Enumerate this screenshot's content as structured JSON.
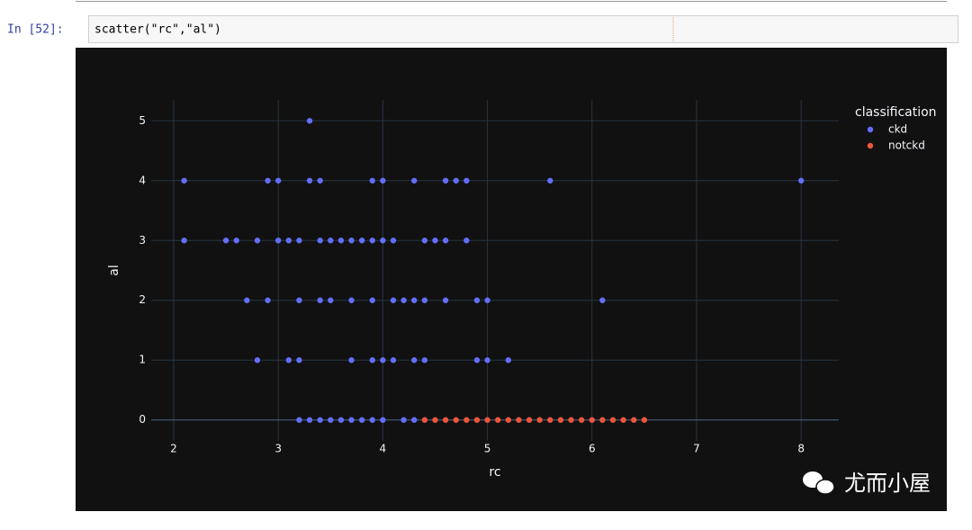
{
  "notebook": {
    "prompt": "In [52]:",
    "code": "scatter(\"rc\",\"al\")"
  },
  "chart_data": {
    "type": "scatter",
    "x_label": "rc",
    "y_label": "al",
    "legend_title": "classification",
    "legend_position": "right",
    "xlim": [
      1.785,
      8.36
    ],
    "ylim": [
      -0.35,
      5.35
    ],
    "xticks": [
      2,
      3,
      4,
      5,
      6,
      7,
      8
    ],
    "yticks": [
      0,
      1,
      2,
      3,
      4,
      5
    ],
    "grid": true,
    "series": [
      {
        "name": "ckd",
        "color": "#636efa",
        "x": [
          3.3,
          2.1,
          2.9,
          3.0,
          3.3,
          3.4,
          3.9,
          4.0,
          4.3,
          4.6,
          4.7,
          4.8,
          5.6,
          8.0,
          2.1,
          2.5,
          2.6,
          2.8,
          3.0,
          3.1,
          3.2,
          3.4,
          3.5,
          3.6,
          3.7,
          3.8,
          3.9,
          4.0,
          4.1,
          4.4,
          4.5,
          4.6,
          4.8,
          2.7,
          2.9,
          3.2,
          3.4,
          3.5,
          3.7,
          3.9,
          4.1,
          4.2,
          4.3,
          4.4,
          4.6,
          4.9,
          5.0,
          6.1,
          2.8,
          3.1,
          3.2,
          3.7,
          3.9,
          4.0,
          4.1,
          4.3,
          4.4,
          4.9,
          5.0,
          5.2,
          3.2,
          3.3,
          3.4,
          3.5,
          3.6,
          3.7,
          3.8,
          3.9,
          4.0,
          4.2,
          4.3
        ],
        "y": [
          5,
          4,
          4,
          4,
          4,
          4,
          4,
          4,
          4,
          4,
          4,
          4,
          4,
          4,
          3,
          3,
          3,
          3,
          3,
          3,
          3,
          3,
          3,
          3,
          3,
          3,
          3,
          3,
          3,
          3,
          3,
          3,
          3,
          2,
          2,
          2,
          2,
          2,
          2,
          2,
          2,
          2,
          2,
          2,
          2,
          2,
          2,
          2,
          1,
          1,
          1,
          1,
          1,
          1,
          1,
          1,
          1,
          1,
          1,
          1,
          0,
          0,
          0,
          0,
          0,
          0,
          0,
          0,
          0,
          0,
          0
        ]
      },
      {
        "name": "notckd",
        "color": "#ef553b",
        "x": [
          4.4,
          4.5,
          4.6,
          4.7,
          4.8,
          4.9,
          5.0,
          5.1,
          5.2,
          5.3,
          5.4,
          5.5,
          5.6,
          5.7,
          5.8,
          5.9,
          6.0,
          6.1,
          6.2,
          6.3,
          6.4,
          6.5
        ],
        "y": [
          0,
          0,
          0,
          0,
          0,
          0,
          0,
          0,
          0,
          0,
          0,
          0,
          0,
          0,
          0,
          0,
          0,
          0,
          0,
          0,
          0,
          0
        ]
      }
    ]
  },
  "watermark": "尤而小屋"
}
